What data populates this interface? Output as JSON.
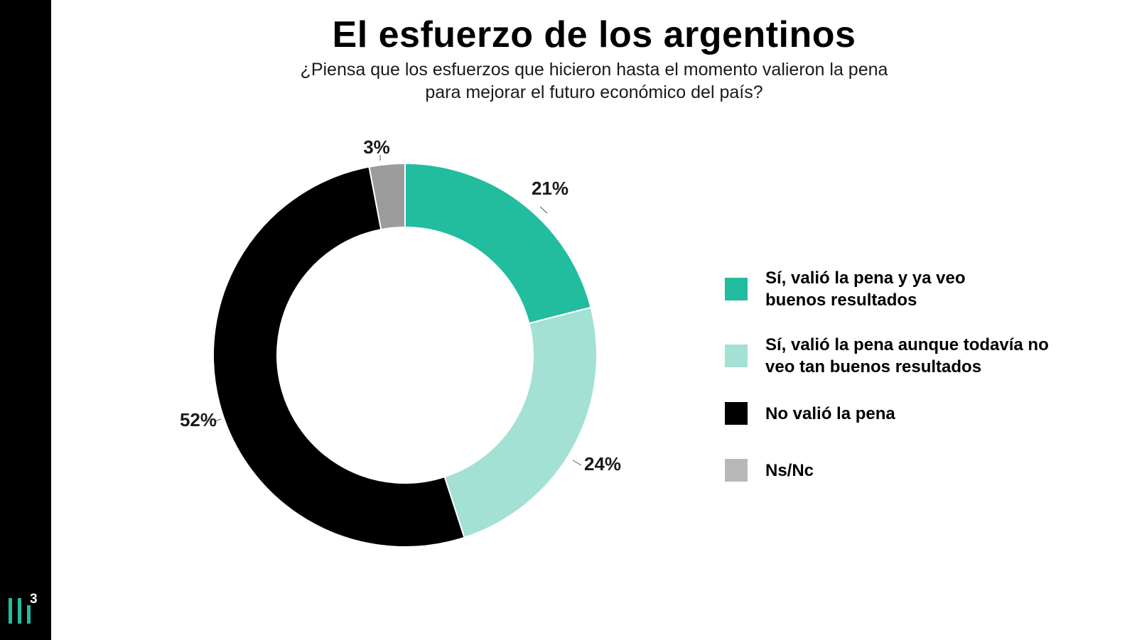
{
  "chart_title": "El esfuerzo de los argentinos",
  "chart_subtitle": [
    "¿Piensa que los esfuerzos que hicieron hasta el momento valieron la pena",
    "para mejorar el futuro económico del país?"
  ],
  "chart_data": {
    "type": "pie",
    "title": "El esfuerzo de los argentinos",
    "subtitle": "¿Piensa que los esfuerzos que hicieron hasta el momento valieron la pena para mejorar el futuro económico del país?",
    "donut": true,
    "start_angle_deg": 0,
    "direction": "clockwise",
    "legend_position": "right",
    "unit": "%",
    "slices": [
      {
        "label": "Sí, valió la pena y ya veo buenos resultados",
        "label_lines": [
          "Sí, valió la pena y ya veo",
          "buenos resultados"
        ],
        "value": 21,
        "display": "21%",
        "color": "#22bc9e"
      },
      {
        "label": "Sí, valió la pena aunque todavía no veo tan buenos resultados",
        "label_lines": [
          "Sí, valió la pena aunque todavía no",
          "veo tan buenos resultados"
        ],
        "value": 24,
        "display": "24%",
        "color": "#a3e1d5"
      },
      {
        "label": "No valió la pena",
        "label_lines": [
          "No valió la pena"
        ],
        "value": 52,
        "display": "52%",
        "color": "#000000"
      },
      {
        "label": "Ns/Nc",
        "label_lines": [
          "Ns/Nc"
        ],
        "value": 3,
        "display": "3%",
        "color": "#9c9c9c"
      }
    ]
  },
  "legend_colors": [
    "#22bc9e",
    "#a3e1d5",
    "#000000",
    "#b8b8b8"
  ],
  "logo": {
    "icon": "bars-logo-icon",
    "superscript": "3",
    "color": "#22bc9e"
  }
}
